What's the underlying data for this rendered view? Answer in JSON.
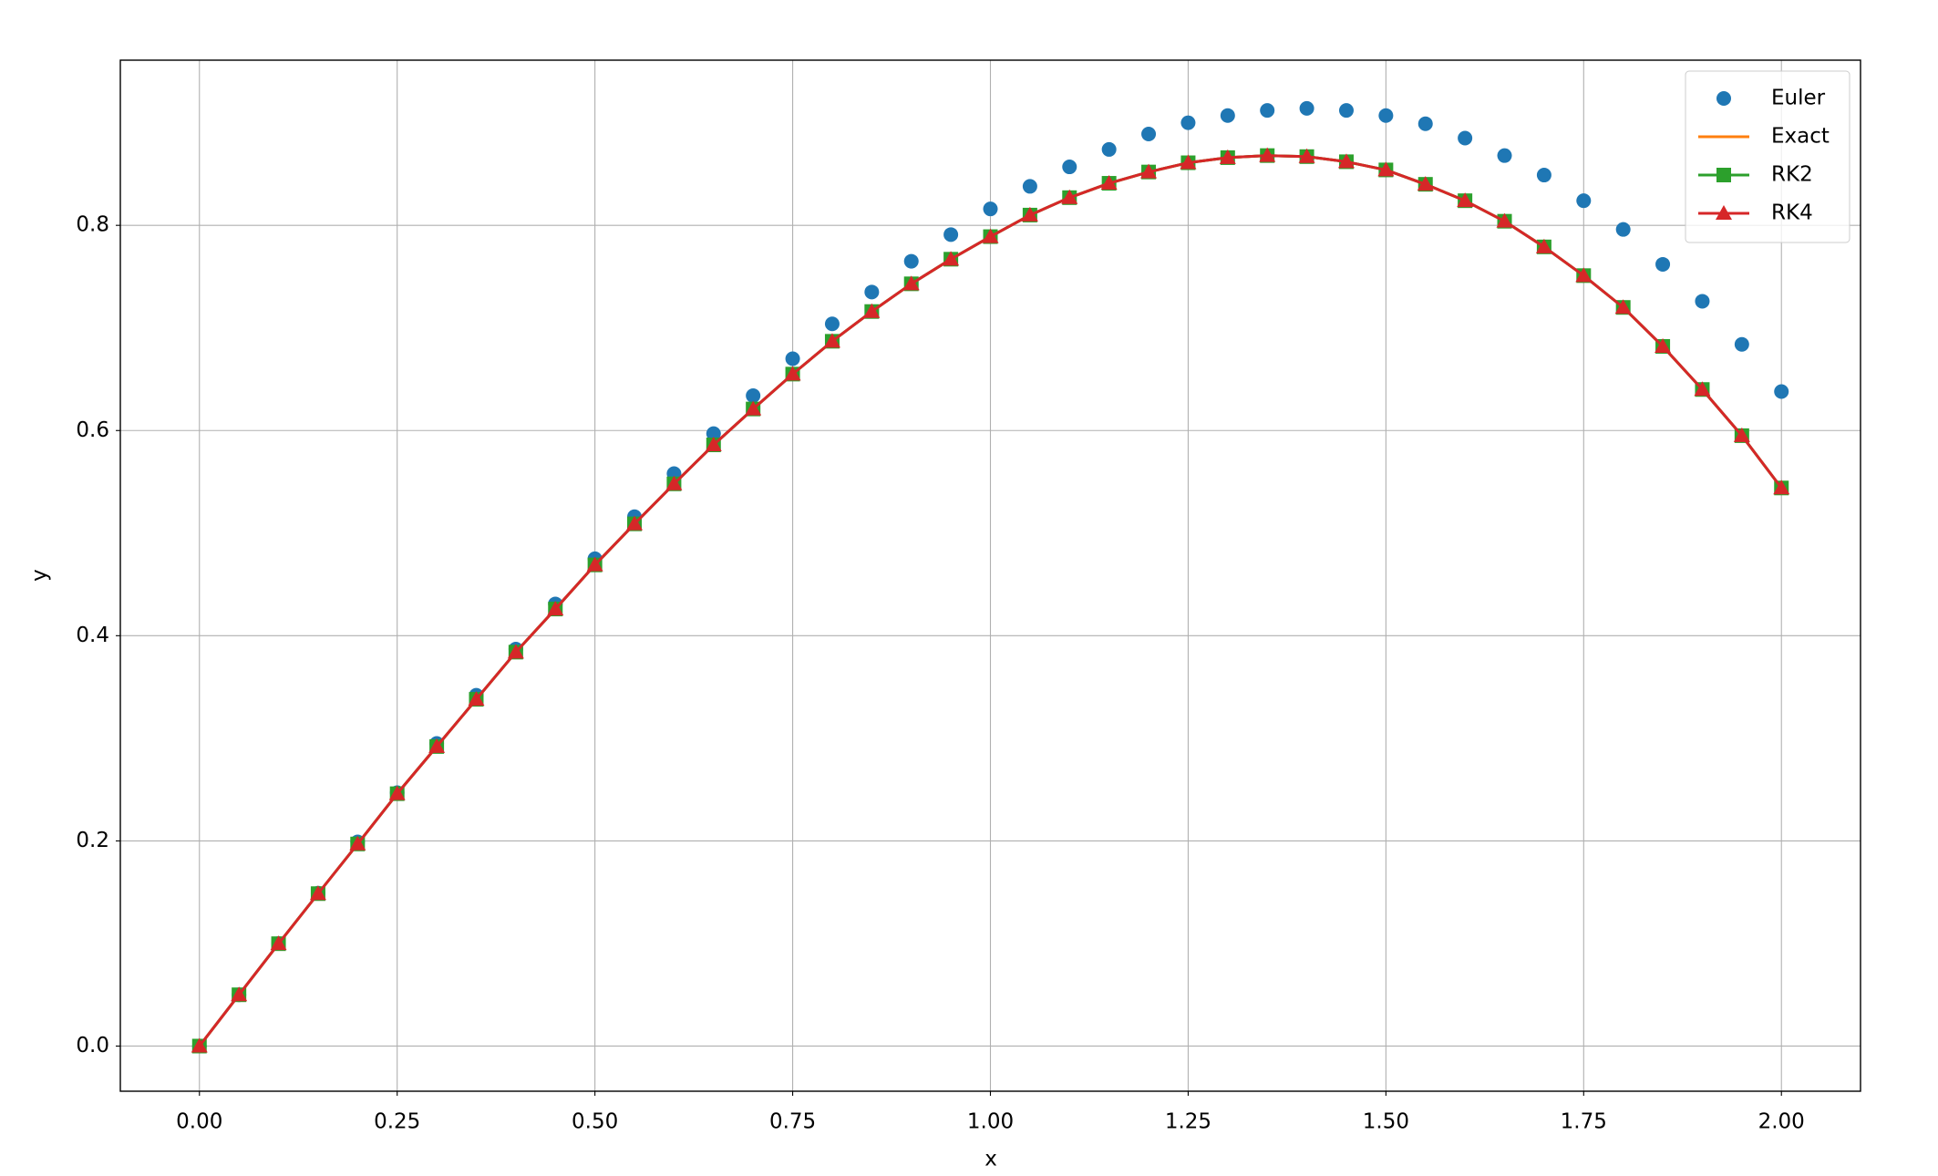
{
  "chart_data": {
    "type": "line",
    "x_label": "x",
    "y_label": "y",
    "x": [
      0,
      0.05,
      0.1,
      0.15,
      0.2,
      0.25,
      0.3,
      0.35,
      0.4,
      0.45,
      0.5,
      0.55,
      0.6,
      0.65,
      0.7,
      0.75,
      0.8,
      0.85,
      0.9,
      0.95,
      1.0,
      1.05,
      1.1,
      1.15,
      1.2,
      1.25,
      1.3,
      1.35,
      1.4,
      1.45,
      1.5,
      1.55,
      1.6,
      1.65,
      1.7,
      1.75,
      1.8,
      1.85,
      1.9,
      1.95,
      2.0
    ],
    "series": [
      {
        "name": "Euler",
        "color": "#1f77b4",
        "marker": "circle",
        "line": false,
        "values": [
          0,
          0.05,
          0.1,
          0.149,
          0.199,
          0.247,
          0.295,
          0.342,
          0.387,
          0.431,
          0.475,
          0.516,
          0.558,
          0.597,
          0.634,
          0.67,
          0.704,
          0.735,
          0.765,
          0.791,
          0.816,
          0.838,
          0.857,
          0.874,
          0.889,
          0.9,
          0.907,
          0.912,
          0.914,
          0.912,
          0.907,
          0.899,
          0.885,
          0.868,
          0.849,
          0.824,
          0.796,
          0.762,
          0.726,
          0.684,
          0.638
        ]
      },
      {
        "name": "Exact",
        "color": "#ff7f0e",
        "marker": "none",
        "line": true,
        "values": [
          0,
          0.05,
          0.0998,
          0.1486,
          0.197,
          0.246,
          0.292,
          0.338,
          0.384,
          0.426,
          0.469,
          0.509,
          0.548,
          0.586,
          0.621,
          0.655,
          0.687,
          0.716,
          0.743,
          0.767,
          0.789,
          0.81,
          0.827,
          0.841,
          0.852,
          0.861,
          0.866,
          0.868,
          0.867,
          0.862,
          0.854,
          0.84,
          0.824,
          0.804,
          0.779,
          0.751,
          0.72,
          0.682,
          0.64,
          0.595,
          0.544
        ]
      },
      {
        "name": "RK2",
        "color": "#2ca02c",
        "marker": "square",
        "line": true,
        "values": [
          0,
          0.05,
          0.0998,
          0.1486,
          0.197,
          0.246,
          0.292,
          0.338,
          0.384,
          0.426,
          0.469,
          0.509,
          0.548,
          0.586,
          0.621,
          0.655,
          0.687,
          0.716,
          0.743,
          0.767,
          0.789,
          0.81,
          0.827,
          0.841,
          0.852,
          0.861,
          0.866,
          0.868,
          0.867,
          0.862,
          0.854,
          0.84,
          0.824,
          0.804,
          0.779,
          0.751,
          0.72,
          0.682,
          0.64,
          0.595,
          0.544
        ]
      },
      {
        "name": "RK4",
        "color": "#d62728",
        "marker": "triangle",
        "line": true,
        "values": [
          0,
          0.05,
          0.0998,
          0.1486,
          0.197,
          0.246,
          0.292,
          0.338,
          0.384,
          0.426,
          0.469,
          0.509,
          0.548,
          0.586,
          0.621,
          0.655,
          0.687,
          0.716,
          0.743,
          0.767,
          0.789,
          0.81,
          0.827,
          0.841,
          0.852,
          0.861,
          0.866,
          0.868,
          0.867,
          0.862,
          0.854,
          0.84,
          0.824,
          0.804,
          0.779,
          0.751,
          0.72,
          0.682,
          0.64,
          0.595,
          0.544
        ]
      }
    ],
    "xlim": [
      -0.1,
      2.1
    ],
    "ylim": [
      -0.044,
      0.961
    ],
    "xticks": [
      {
        "value": 0,
        "label": "0.00"
      },
      {
        "value": 0.25,
        "label": "0.25"
      },
      {
        "value": 0.5,
        "label": "0.50"
      },
      {
        "value": 0.75,
        "label": "0.75"
      },
      {
        "value": 1,
        "label": "1.00"
      },
      {
        "value": 1.25,
        "label": "1.25"
      },
      {
        "value": 1.5,
        "label": "1.50"
      },
      {
        "value": 1.75,
        "label": "1.75"
      },
      {
        "value": 2,
        "label": "2.00"
      }
    ],
    "yticks": [
      {
        "value": 0,
        "label": "0.0"
      },
      0.2,
      0.4,
      0.6,
      0.8
    ],
    "grid": true,
    "legend": "upper right"
  }
}
